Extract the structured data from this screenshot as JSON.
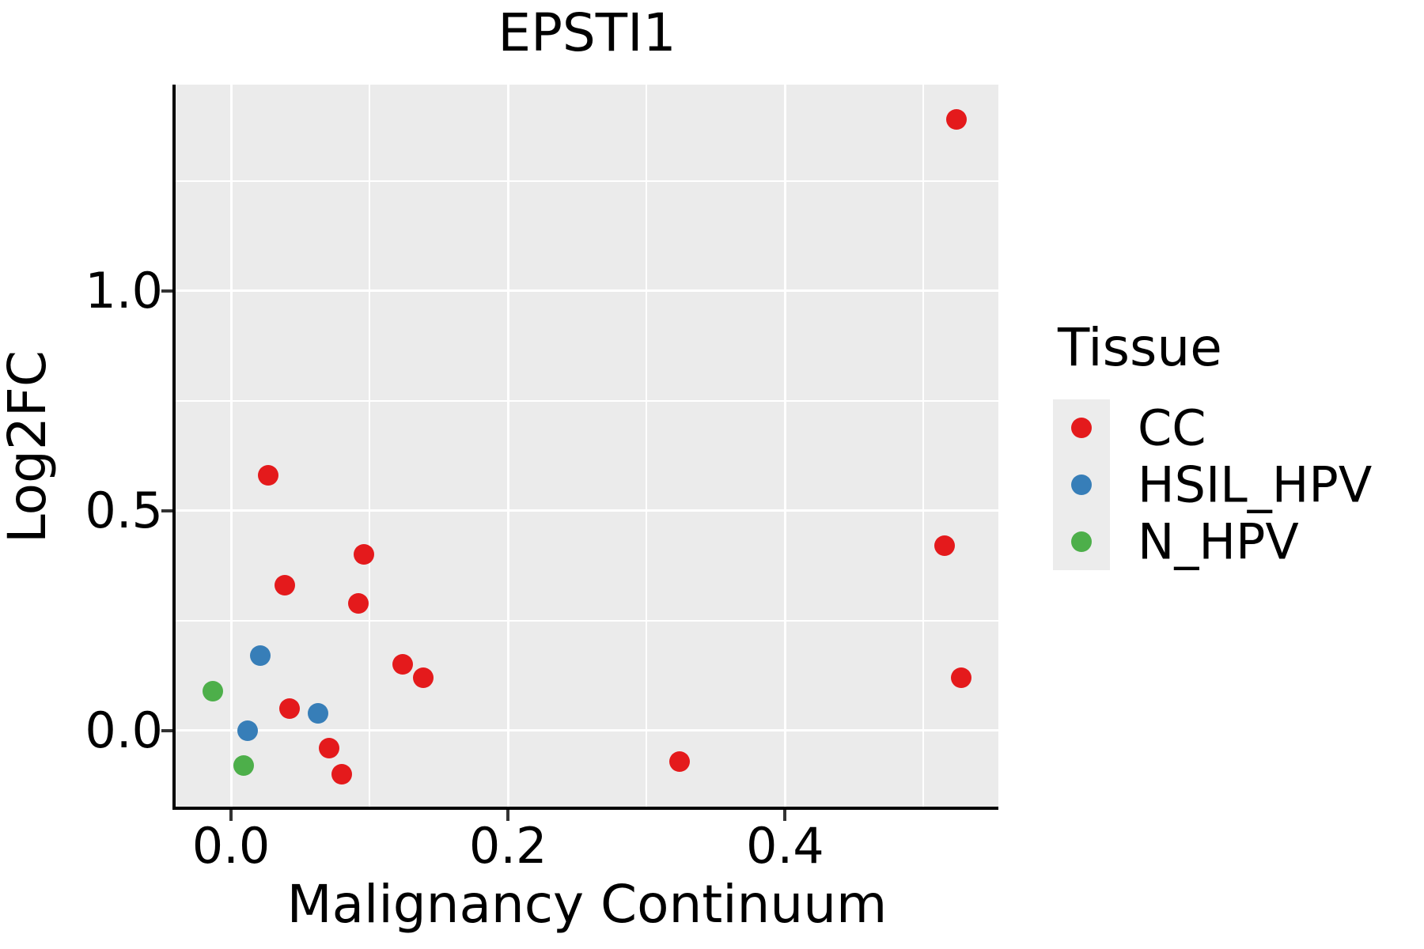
{
  "title": "EPSTI1",
  "axes": {
    "x": {
      "label": "Malignancy Continuum",
      "range": [
        -0.04,
        0.554
      ],
      "major_ticks": [
        0.0,
        0.2,
        0.4
      ],
      "major_tick_labels": [
        "0.0",
        "0.2",
        "0.4"
      ],
      "minor_ticks": [
        0.1,
        0.3,
        0.5
      ]
    },
    "y": {
      "label": "Log2FC",
      "range": [
        -0.173,
        1.469
      ],
      "major_ticks": [
        0.0,
        0.5,
        1.0
      ],
      "major_tick_labels": [
        "0.0",
        "0.5",
        "1.0"
      ],
      "minor_ticks": [
        0.25,
        0.75,
        1.25
      ]
    }
  },
  "legend": {
    "title": "Tissue",
    "position": "right",
    "items": [
      {
        "label": "CC",
        "color": "#E41A1C"
      },
      {
        "label": "HSIL_HPV",
        "color": "#377EB8"
      },
      {
        "label": "N_HPV",
        "color": "#4DAF4A"
      }
    ]
  },
  "style": {
    "panel_background": "#EBEBEB",
    "gridline_color": "#FFFFFF",
    "axis_line_color": "#000000",
    "tick_color": "#333333"
  },
  "chart_data": {
    "type": "scatter",
    "title": "EPSTI1",
    "xlabel": "Malignancy Continuum",
    "ylabel": "Log2FC",
    "xlim": [
      -0.04,
      0.554
    ],
    "ylim": [
      -0.173,
      1.469
    ],
    "grid": true,
    "legend_title": "Tissue",
    "legend_position": "right",
    "series": [
      {
        "name": "CC",
        "color": "#E41A1C",
        "points": [
          [
            0.027,
            0.58
          ],
          [
            0.096,
            0.4
          ],
          [
            0.039,
            0.33
          ],
          [
            0.092,
            0.29
          ],
          [
            0.124,
            0.15
          ],
          [
            0.139,
            0.12
          ],
          [
            0.042,
            0.05
          ],
          [
            0.071,
            -0.04
          ],
          [
            0.08,
            -0.1
          ],
          [
            0.324,
            -0.07
          ],
          [
            0.515,
            0.42
          ],
          [
            0.527,
            0.12
          ],
          [
            0.524,
            1.39
          ]
        ]
      },
      {
        "name": "HSIL_HPV",
        "color": "#377EB8",
        "points": [
          [
            0.021,
            0.17
          ],
          [
            0.063,
            0.04
          ],
          [
            0.012,
            0.0
          ]
        ]
      },
      {
        "name": "N_HPV",
        "color": "#4DAF4A",
        "points": [
          [
            -0.013,
            0.09
          ],
          [
            0.009,
            -0.08
          ]
        ]
      }
    ]
  }
}
